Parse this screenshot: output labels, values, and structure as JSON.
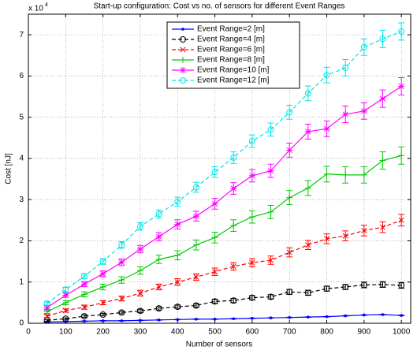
{
  "chart_data": {
    "type": "line",
    "title": "Start-up configuration: Cost vs no. of sensors for different Event Ranges",
    "x_label": "Number of sensors",
    "y_label": "Cost [nJ]",
    "y_scale_base": "x 10",
    "y_scale_exponent": "4",
    "x": [
      50,
      100,
      150,
      200,
      250,
      300,
      350,
      400,
      450,
      500,
      550,
      600,
      650,
      700,
      750,
      800,
      850,
      900,
      950,
      1000
    ],
    "xlim": [
      0,
      1025
    ],
    "xticks": [
      0,
      100,
      200,
      300,
      400,
      500,
      600,
      700,
      800,
      900,
      1000
    ],
    "ylim": [
      0,
      75000
    ],
    "yticks": [
      {
        "value": 0,
        "label": "0"
      },
      {
        "value": 10000,
        "label": "1"
      },
      {
        "value": 20000,
        "label": "2"
      },
      {
        "value": 30000,
        "label": "3"
      },
      {
        "value": 40000,
        "label": "4"
      },
      {
        "value": 50000,
        "label": "5"
      },
      {
        "value": 60000,
        "label": "6"
      },
      {
        "value": 70000,
        "label": "7"
      }
    ],
    "grid": true,
    "legend": "upper center",
    "series": [
      {
        "name": "Event Range=2 [m]",
        "color": "#0000ff",
        "marker": "point",
        "dashed": false,
        "values": [
          300,
          400,
          500,
          600,
          600,
          700,
          800,
          900,
          1000,
          1000,
          1100,
          1200,
          1300,
          1400,
          1500,
          1600,
          1800,
          2000,
          2100,
          1900
        ],
        "errors": [
          60,
          60,
          60,
          60,
          60,
          60,
          60,
          60,
          60,
          60,
          60,
          60,
          60,
          60,
          60,
          60,
          60,
          60,
          60,
          60
        ]
      },
      {
        "name": "Event Range=4 [m]",
        "color": "#000000",
        "marker": "circle",
        "dashed": true,
        "values": [
          700,
          1100,
          1700,
          2100,
          2600,
          3000,
          3600,
          4000,
          4300,
          5300,
          5500,
          6200,
          6400,
          7600,
          7400,
          8400,
          8800,
          9300,
          9400,
          9200
        ],
        "errors": [
          200,
          200,
          300,
          300,
          300,
          400,
          400,
          400,
          400,
          500,
          500,
          500,
          500,
          600,
          600,
          600,
          600,
          700,
          700,
          700
        ]
      },
      {
        "name": "Event Range=6 [m]",
        "color": "#ff0000",
        "marker": "x",
        "dashed": true,
        "values": [
          1700,
          3100,
          3900,
          5000,
          6000,
          7300,
          8800,
          10000,
          11200,
          12500,
          13800,
          14700,
          15300,
          17200,
          19000,
          20500,
          21200,
          22500,
          23300,
          25000
        ],
        "errors": [
          300,
          400,
          500,
          500,
          600,
          700,
          700,
          800,
          800,
          900,
          900,
          1000,
          1000,
          1100,
          1100,
          1200,
          1200,
          1300,
          1300,
          1400
        ]
      },
      {
        "name": "Event Range=8 [m]",
        "color": "#00cc00",
        "marker": "plus",
        "dashed": false,
        "values": [
          2800,
          5000,
          7000,
          8800,
          10500,
          12800,
          15500,
          16500,
          19000,
          20800,
          23700,
          25800,
          27000,
          30500,
          32800,
          36200,
          36000,
          36000,
          39500,
          40700
        ],
        "errors": [
          400,
          500,
          600,
          700,
          800,
          900,
          1000,
          1100,
          1200,
          1300,
          1400,
          1500,
          1600,
          1700,
          1800,
          1900,
          2000,
          2000,
          2100,
          2100
        ]
      },
      {
        "name": "Event Range=10 [m]",
        "color": "#ff00ff",
        "marker": "asterisk",
        "dashed": false,
        "values": [
          3800,
          6800,
          9500,
          12000,
          14800,
          18000,
          21000,
          24000,
          26000,
          29000,
          32700,
          35800,
          37000,
          42000,
          46500,
          47200,
          50700,
          51500,
          54500,
          57500
        ],
        "errors": [
          400,
          500,
          600,
          700,
          800,
          900,
          1000,
          1100,
          1200,
          1300,
          1400,
          1500,
          1600,
          1700,
          1800,
          1900,
          2000,
          2000,
          2100,
          2100
        ]
      },
      {
        "name": "Event Range=12 [m]",
        "color": "#00e5e5",
        "marker": "circle",
        "dashed": true,
        "values": [
          4800,
          8200,
          11400,
          15000,
          19000,
          23500,
          26500,
          29500,
          33000,
          36700,
          40200,
          44200,
          47000,
          51200,
          55800,
          60200,
          62000,
          67000,
          69000,
          70800
        ],
        "errors": [
          400,
          500,
          600,
          700,
          800,
          900,
          1000,
          1100,
          1200,
          1300,
          1400,
          1500,
          1600,
          1700,
          1800,
          1900,
          2000,
          2000,
          2100,
          2100
        ]
      }
    ]
  }
}
